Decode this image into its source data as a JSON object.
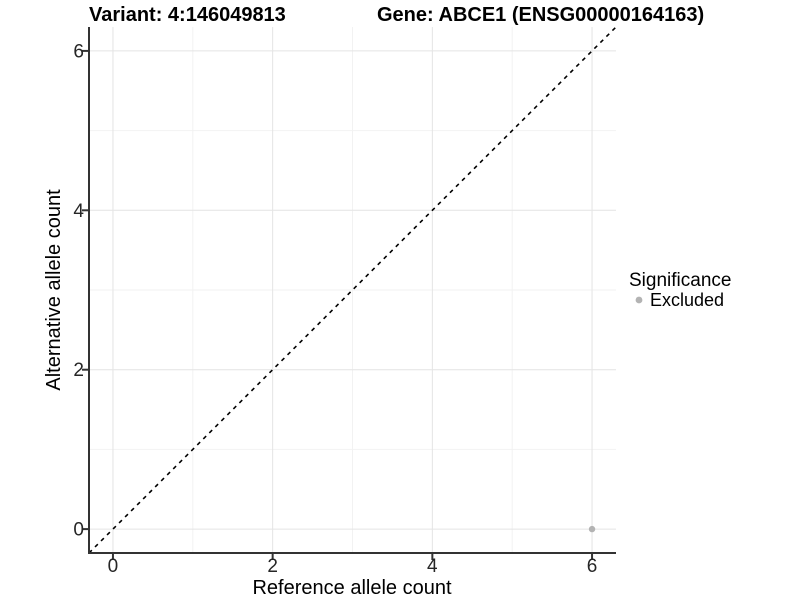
{
  "figure": {
    "title_left": "Variant: 4:146049813",
    "title_right": "Gene: ABCE1 (ENSG00000164163)",
    "x_axis": {
      "label": "Reference allele count",
      "tick_labels": [
        "0",
        "2",
        "4",
        "6"
      ]
    },
    "y_axis": {
      "label": "Alternative allele count",
      "tick_labels": [
        "0",
        "2",
        "4",
        "6"
      ]
    },
    "legend": {
      "title": "Significance",
      "items": [
        {
          "label": "Excluded",
          "swatch": "circle",
          "color": "#b3b3b3"
        }
      ]
    },
    "colors": {
      "point": "#b3b3b3",
      "grid_major": "#e4e4e4",
      "grid_minor": "#f2f2f2",
      "axis": "#333333",
      "reference_line": "#000000",
      "background": "#ffffff"
    }
  },
  "chart_data": {
    "type": "scatter",
    "title": "Variant: 4:146049813",
    "title_right": "Gene: ABCE1 (ENSG00000164163)",
    "xlabel": "Reference allele count",
    "ylabel": "Alternative allele count",
    "xlim": [
      -0.3,
      6.3
    ],
    "ylim": [
      -0.3,
      6.3
    ],
    "x_ticks": [
      0,
      2,
      4,
      6
    ],
    "y_ticks": [
      0,
      2,
      4,
      6
    ],
    "grid": "major+minor",
    "legend_position": "right",
    "series": [
      {
        "name": "Excluded",
        "color": "#b3b3b3",
        "points": [
          {
            "x": 6,
            "y": 0
          }
        ]
      }
    ],
    "reference_line": {
      "equation": "y = x",
      "slope": 1,
      "intercept": 0,
      "style": "dashed",
      "color": "#000000"
    }
  }
}
